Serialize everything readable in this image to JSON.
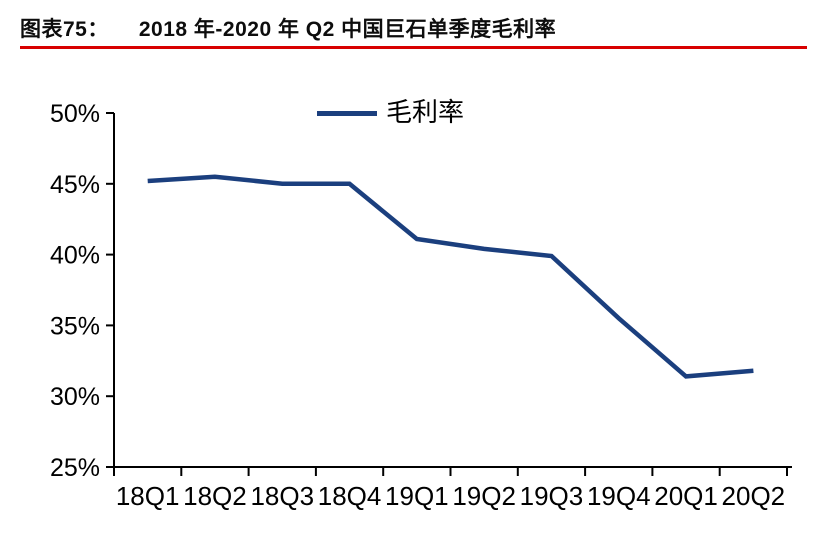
{
  "figure": {
    "label": "图表75：",
    "title": "2018 年-2020 年 Q2 中国巨石单季度毛利率",
    "rule_color": "#d80000"
  },
  "chart_data": {
    "type": "line",
    "title": "2018年-2020年Q2中国巨石单季度毛利率",
    "categories": [
      "18Q1",
      "18Q2",
      "18Q3",
      "18Q4",
      "19Q1",
      "19Q2",
      "19Q3",
      "19Q4",
      "20Q1",
      "20Q2"
    ],
    "series": [
      {
        "name": "毛利率",
        "color": "#1b3f7e",
        "values": [
          45.2,
          45.5,
          45.0,
          45.0,
          41.1,
          40.4,
          39.9,
          35.5,
          31.4,
          31.8
        ]
      }
    ],
    "xlabel": "",
    "ylabel": "",
    "ylim": [
      25,
      50
    ],
    "ytick_step": 5,
    "ytick_labels": [
      "50%",
      "45%",
      "40%",
      "35%",
      "30%",
      "25%"
    ],
    "grid": false,
    "legend_position": "top-center",
    "axis_color": "#000000"
  }
}
